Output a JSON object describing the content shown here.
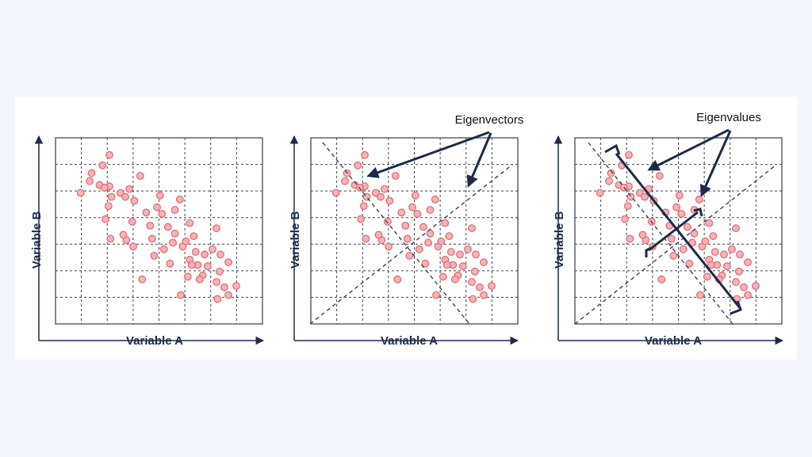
{
  "colors": {
    "page_background": "#f3f6fc",
    "card_background": "#ffffff",
    "axis": "#1b2b4b",
    "frame": "#5a6275",
    "grid": "#3c4252",
    "point_fill": "#f7b3b5",
    "point_stroke": "#e0666d",
    "annotation": "#1b2b4b"
  },
  "icons": {
    "axis_arrow": "arrow-head-icon",
    "point_marker": "circle-icon"
  },
  "panels": [
    {
      "id": "scatter",
      "xlabel": "Variable A",
      "ylabel": "Variable B",
      "annotation": ""
    },
    {
      "id": "eigenvectors",
      "xlabel": "Variable A",
      "ylabel": "Variable B",
      "annotation": "Eigenvectors"
    },
    {
      "id": "eigenvalues",
      "xlabel": "Variable A",
      "ylabel": "Variable B",
      "annotation": "Eigenvalues"
    }
  ],
  "points": [
    [
      2.0,
      10.3
    ],
    [
      3.0,
      10.0
    ],
    [
      4.0,
      9.9
    ],
    [
      5.1,
      9.4
    ],
    [
      5.6,
      9.1
    ],
    [
      6.5,
      8.8
    ],
    [
      8.8,
      8.3
    ],
    [
      9.3,
      7.8
    ],
    [
      6.3,
      7.2
    ],
    [
      8.1,
      6.9
    ],
    [
      9.9,
      6.8
    ],
    [
      10.6,
      6.3
    ],
    [
      10.4,
      5.6
    ],
    [
      11.4,
      5.3
    ],
    [
      12.7,
      4.9
    ],
    [
      12.1,
      4.3
    ],
    [
      12.9,
      3.9
    ],
    [
      13.9,
      3.8
    ],
    [
      13.4,
      3.1
    ],
    [
      11.9,
      3.0
    ],
    [
      13.1,
      2.8
    ],
    [
      15.1,
      3.4
    ],
    [
      14.8,
      2.6
    ],
    [
      16.8,
      2.3
    ],
    [
      16.0,
      1.6
    ],
    [
      14.9,
      1.3
    ],
    [
      11.2,
      1.6
    ],
    [
      7.3,
      2.8
    ],
    [
      9.5,
      5.1
    ],
    [
      8.5,
      4.6
    ],
    [
      10.6,
      8.1
    ],
    [
      12.1,
      7.1
    ],
    [
      11.1,
      8.9
    ],
    [
      9.1,
      9.2
    ],
    [
      7.1,
      10.7
    ],
    [
      6.0,
      9.7
    ],
    [
      4.2,
      9.1
    ],
    [
      3.5,
      9.8
    ],
    [
      7.7,
      7.9
    ],
    [
      3.6,
      7.4
    ],
    [
      4.1,
      5.9
    ],
    [
      5.7,
      5.8
    ],
    [
      6.4,
      5.3
    ],
    [
      8.3,
      5.9
    ],
    [
      11.7,
      5.7
    ],
    [
      12.5,
      6.1
    ],
    [
      10.1,
      4.0
    ],
    [
      13.6,
      4.7
    ],
    [
      14.4,
      5.1
    ],
    [
      16.0,
      4.1
    ],
    [
      15.2,
      4.7
    ],
    [
      14.8,
      6.7
    ],
    [
      5.4,
      6.2
    ],
    [
      3.3,
      11.5
    ],
    [
      1.1,
      9.4
    ],
    [
      4.0,
      12.3
    ],
    [
      2.2,
      10.9
    ],
    [
      3.9,
      8.4
    ],
    [
      12.3,
      3.9
    ],
    [
      15.6,
      2.2
    ]
  ]
}
